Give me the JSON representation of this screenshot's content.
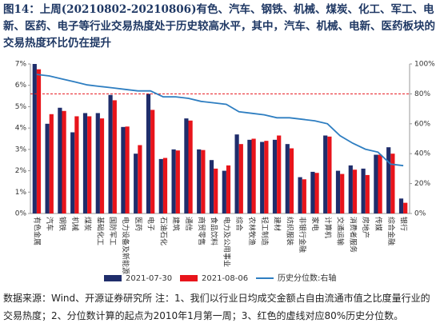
{
  "chart_data": {
    "type": "bar",
    "title": "图14：上周(20210802-20210806)有色、汽车、钢铁、机械、煤炭、化工、军工、电新、医药、电子等行业交易热度处于历史较高水平，其中，汽车、机械、电新、医药板块的交易热度环比仍在提升",
    "categories": [
      "有色金属",
      "汽车",
      "钢铁",
      "机械",
      "煤炭",
      "基础化工",
      "国防军工",
      "电力设备及新能源",
      "医药",
      "电子",
      "石油石化",
      "建筑",
      "通信",
      "商贸零售",
      "食品饮料",
      "电力及公用事业",
      "综合",
      "农林牧渔",
      "轻工制造",
      "建材",
      "纺织服装",
      "非银行金融",
      "家电",
      "计算机",
      "交通运输",
      "消费者服务",
      "房地产",
      "传媒",
      "综合金融",
      "银行"
    ],
    "series": [
      {
        "name": "2021-07-30",
        "color": "#1f2d6b",
        "values": [
          7.0,
          4.2,
          4.95,
          3.8,
          4.7,
          4.7,
          5.55,
          4.05,
          2.8,
          5.6,
          2.55,
          3.0,
          4.45,
          3.0,
          2.5,
          2.0,
          3.7,
          3.45,
          3.35,
          3.45,
          3.25,
          1.7,
          1.95,
          3.65,
          2.0,
          2.25,
          2.1,
          2.75,
          3.1,
          0.7
        ]
      },
      {
        "name": "2021-08-06",
        "color": "#e8141b",
        "values": [
          6.75,
          4.65,
          4.8,
          4.55,
          4.55,
          4.45,
          5.3,
          4.07,
          3.2,
          4.85,
          2.6,
          2.95,
          4.35,
          2.97,
          2.1,
          2.25,
          3.25,
          3.5,
          3.4,
          3.65,
          3.05,
          1.6,
          1.9,
          3.6,
          1.85,
          2.05,
          1.8,
          2.75,
          2.8,
          0.5
        ]
      },
      {
        "name": "历史分位数:右轴",
        "color": "#2e7ec1",
        "type": "line",
        "axis": "y2",
        "values": [
          93,
          92,
          90,
          88,
          86,
          85,
          84,
          83,
          82,
          82,
          78,
          78,
          77,
          75,
          74,
          73,
          68,
          67,
          66,
          64,
          64,
          63,
          62,
          60,
          52,
          47,
          43,
          41,
          33,
          32
        ]
      }
    ],
    "ylim": [
      0,
      7
    ],
    "yticks": [
      {
        "value": 0,
        "label": "0%"
      },
      {
        "value": 1,
        "label": "1%"
      },
      {
        "value": 2,
        "label": "2%"
      },
      {
        "value": 3,
        "label": "3%"
      },
      {
        "value": 4,
        "label": "4%"
      },
      {
        "value": 5,
        "label": "5%"
      },
      {
        "value": 6,
        "label": "6%"
      },
      {
        "value": 7,
        "label": "7%"
      }
    ],
    "y2lim": [
      0,
      100
    ],
    "y2ticks": [
      {
        "value": 0,
        "label": "0%"
      },
      {
        "value": 20,
        "label": "20%"
      },
      {
        "value": 40,
        "label": "40%"
      },
      {
        "value": 60,
        "label": "60%"
      },
      {
        "value": 80,
        "label": "80%"
      },
      {
        "value": 100,
        "label": "100%"
      }
    ],
    "reference_line": {
      "axis": "y2",
      "value": 80,
      "color": "#e8141b"
    },
    "grid": false,
    "note": "数据来源：Wind、开源证券研究所  注：1、我们以行业日均成交金额占自由流通市值之比度量行业的交易热度；2、分位数计算的起点为2010年1月第一周；3、红色的虚线对应80%历史分位数。"
  }
}
